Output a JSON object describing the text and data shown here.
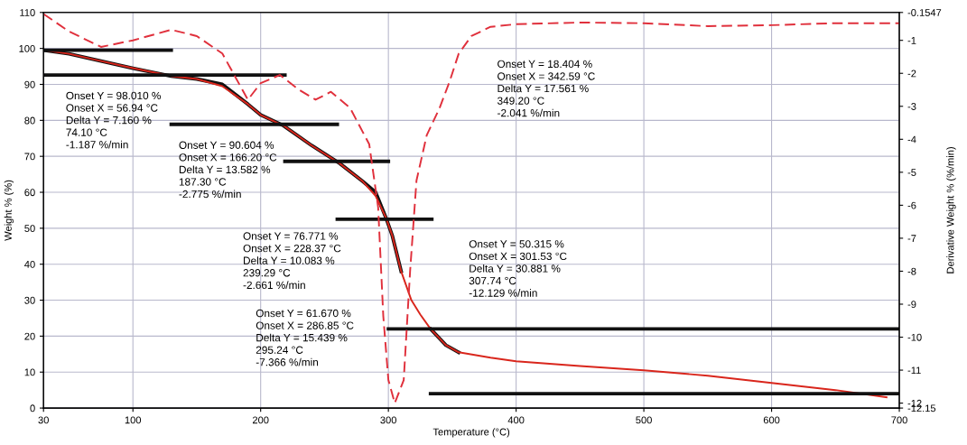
{
  "chart_data": {
    "type": "line",
    "xlabel": "Temperature (°C)",
    "ylabel": "Weight % (%)",
    "y2label": "Derivative Weight % (%/min)",
    "xlim": [
      30,
      700
    ],
    "xticks": [
      30,
      100,
      200,
      300,
      400,
      500,
      600,
      700
    ],
    "ylim": [
      0,
      110
    ],
    "yticks": [
      0,
      10,
      20,
      30,
      40,
      50,
      60,
      70,
      80,
      90,
      100,
      110
    ],
    "y2lim": [
      -12.15,
      -0.1547
    ],
    "y2ticks": [
      -12.15,
      -12,
      -11,
      -10,
      -9,
      -8,
      -7,
      -6,
      -5,
      -4,
      -3,
      -2,
      -1,
      -0.1547
    ],
    "grid": true,
    "line_style": "solid",
    "marker": "none",
    "series": [
      {
        "color": "#111111",
        "x": [
          30,
          50,
          75,
          100,
          130,
          150,
          170,
          190,
          200,
          218,
          240,
          262,
          280,
          290,
          298,
          303,
          310
        ],
        "values": [
          99.5,
          98.5,
          96.5,
          94.5,
          92.3,
          91.5,
          90,
          84.5,
          81.5,
          78.5,
          73,
          68,
          63,
          60,
          53,
          48,
          38
        ]
      },
      {
        "color": "#111111",
        "x": [
          333,
          345,
          355
        ],
        "values": [
          22,
          17.5,
          15.5
        ]
      },
      {
        "color": "#d9261c",
        "x": [
          30,
          50,
          75,
          100,
          130,
          150,
          170,
          190,
          200,
          218,
          240,
          262,
          280,
          290,
          298,
          303,
          310,
          318,
          325,
          333,
          345,
          355,
          380,
          400,
          450,
          500,
          550,
          600,
          650,
          690
        ],
        "values": [
          99.5,
          98.5,
          96.5,
          94.5,
          92.3,
          91.5,
          89.5,
          84.5,
          81.5,
          78.5,
          73,
          68,
          63,
          59,
          53,
          48,
          38,
          30,
          26,
          22,
          17.5,
          15.5,
          14,
          13,
          11.7,
          10.5,
          9,
          7,
          5,
          3
        ]
      },
      {
        "color": "#e0303c",
        "axis": "y2",
        "line_style": "dashed",
        "x": [
          30,
          50,
          75,
          100,
          130,
          150,
          170,
          190,
          200,
          215,
          230,
          243,
          255,
          270,
          285,
          292,
          296,
          300,
          305,
          312,
          317,
          322,
          330,
          340,
          348,
          355,
          365,
          380,
          400,
          450,
          500,
          550,
          600,
          650,
          700
        ],
        "values": [
          -0.2,
          -0.73,
          -1.2,
          -1.0,
          -0.68,
          -0.87,
          -1.4,
          -2.8,
          -2.3,
          -2.05,
          -2.5,
          -2.8,
          -2.56,
          -3.05,
          -4.15,
          -6.07,
          -9.36,
          -11.3,
          -12.0,
          -11.3,
          -8.0,
          -5.25,
          -3.88,
          -3.06,
          -2.24,
          -1.41,
          -0.87,
          -0.59,
          -0.51,
          -0.46,
          -0.48,
          -0.57,
          -0.54,
          -0.48,
          -0.48
        ]
      },
      {
        "color": "#111111",
        "x": [
          30,
          130
        ],
        "values": [
          99.5,
          99.5
        ]
      },
      {
        "color": "#111111",
        "x": [
          30,
          219
        ],
        "values": [
          92.6,
          92.6
        ]
      },
      {
        "color": "#111111",
        "x": [
          130,
          260
        ],
        "values": [
          78.9,
          78.9
        ]
      },
      {
        "color": "#111111",
        "x": [
          219,
          300
        ],
        "values": [
          68.6,
          68.6
        ]
      },
      {
        "color": "#111111",
        "x": [
          260,
          334
        ],
        "values": [
          52.5,
          52.5
        ]
      },
      {
        "color": "#111111",
        "x": [
          300,
          700
        ],
        "values": [
          22,
          22
        ]
      },
      {
        "color": "#111111",
        "x": [
          333,
          700
        ],
        "values": [
          4,
          4
        ]
      }
    ],
    "annotations": [
      "Onset Y = 98.010 %\nOnset X = 56.94 °C\nDelta Y = 7.160 %\n74.10 °C\n-1.187 %/min",
      "Onset Y = 90.604 %\nOnset X = 166.20 °C\nDelta Y = 13.582 %\n187.30 °C\n-2.775 %/min",
      "Onset Y = 76.771 %\nOnset X = 228.37 °C\nDelta Y = 10.083 %\n239.29 °C\n-2.661 %/min",
      "Onset Y = 61.670 %\nOnset X = 286.85 °C\nDelta Y = 15.439 %\n295.24 °C\n-7.366 %/min",
      "Onset Y = 50.315 %\nOnset X = 301.53 °C\nDelta Y = 30.881 %\n307.74 °C\n-12.129 %/min",
      "Onset Y = 18.404 %\nOnset X = 342.59 °C\nDelta Y = 17.561 %\n349.20 °C\n-2.041 %/min"
    ]
  }
}
